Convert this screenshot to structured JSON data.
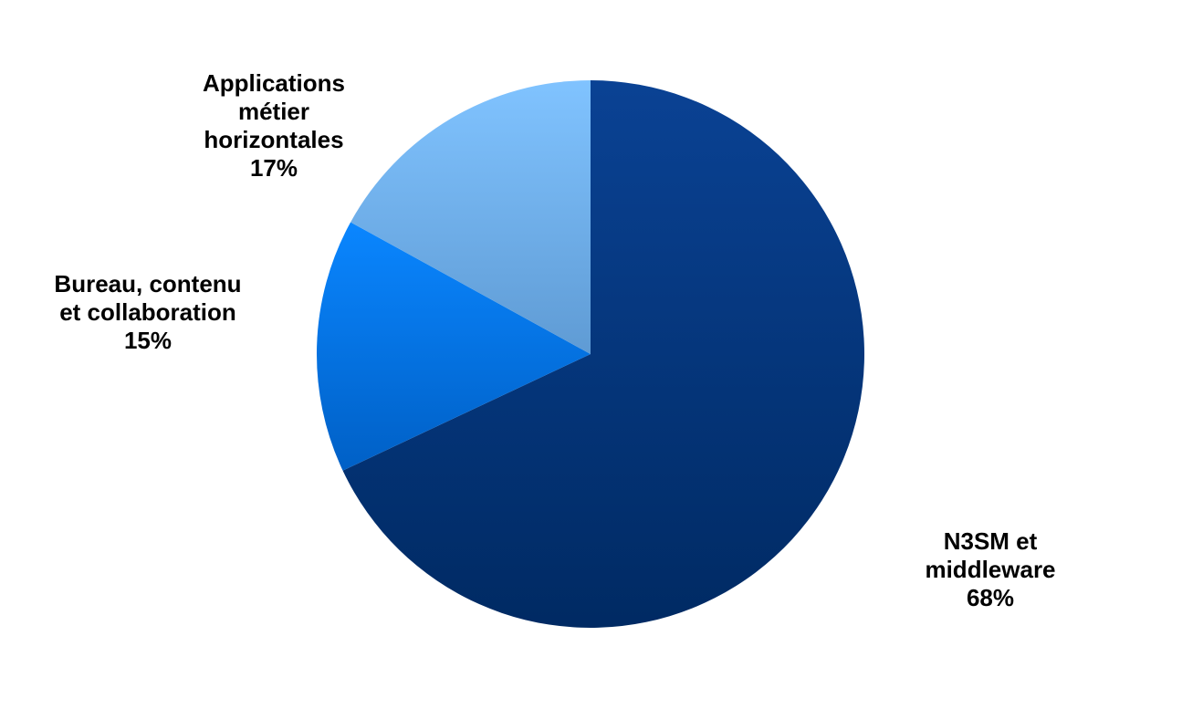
{
  "chart_data": {
    "type": "pie",
    "start_angle_deg": 0,
    "direction": "clockwise",
    "slices": [
      {
        "label_lines": [
          "N3SM et",
          "middleware"
        ],
        "percent_label": "68%",
        "value": 68,
        "color_light": "#0a4294",
        "color_dark": "#002a63"
      },
      {
        "label_lines": [
          "Bureau, contenu",
          "et collaboration"
        ],
        "percent_label": "15%",
        "value": 15,
        "color_light": "#0a86ff",
        "color_dark": "#0060c6"
      },
      {
        "label_lines": [
          "Applications",
          "métier",
          "horizontales"
        ],
        "percent_label": "17%",
        "value": 17,
        "color_light": "#80c3ff",
        "color_dark": "#5f9bd4"
      }
    ]
  }
}
